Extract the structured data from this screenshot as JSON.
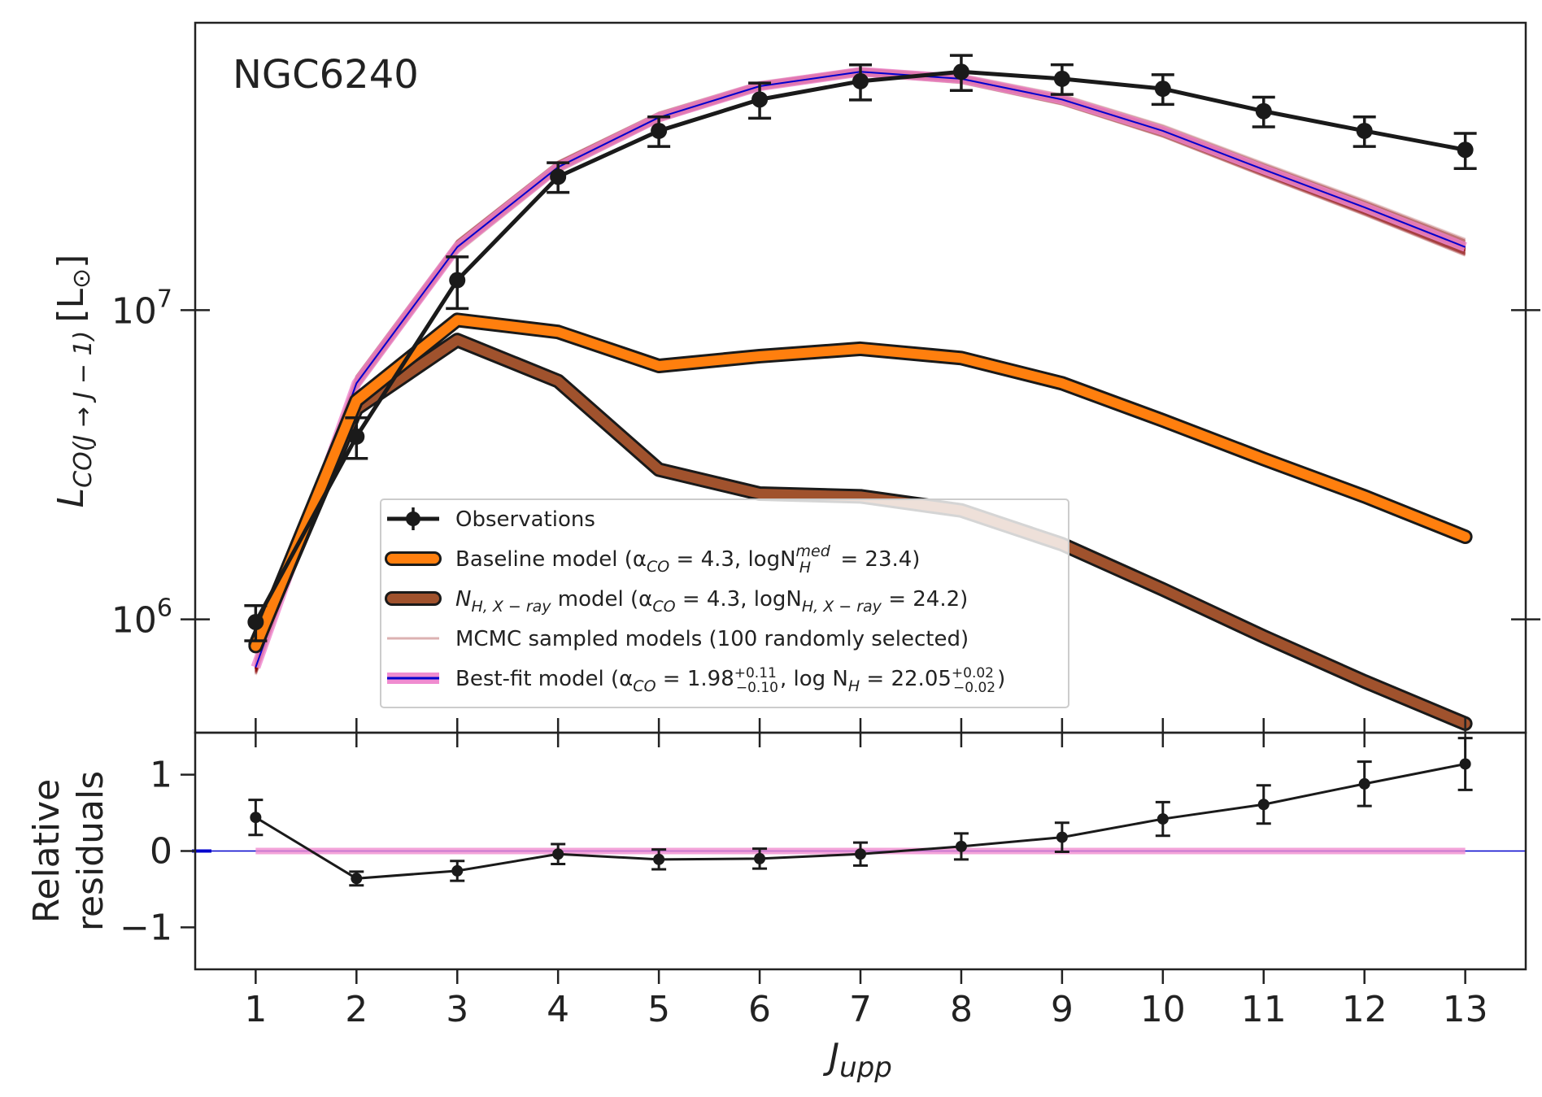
{
  "chart_data": [
    {
      "type": "line",
      "scale": "log",
      "annotation": "NGC6240",
      "ylabel_main": "L",
      "ylabel_sub": "CO(J → J − 1)",
      "ylabel_unit_open": "[L",
      "ylabel_unit_sym": "⊙",
      "ylabel_unit_close": "]",
      "ytick_base": "10",
      "ytick_labels": [
        {
          "value": 1000000,
          "exp": "6"
        },
        {
          "value": 10000000,
          "exp": "7"
        }
      ],
      "ylim": [
        430000,
        85000000
      ],
      "x": [
        1,
        2,
        3,
        4,
        5,
        6,
        7,
        8,
        9,
        10,
        11,
        12,
        13
      ],
      "series": [
        {
          "name": "observations",
          "values": [
            980000,
            3900000,
            12500000,
            27000000,
            38000000,
            48000000,
            55000000,
            59000000,
            56000000,
            52000000,
            44000000,
            38000000,
            33000000
          ],
          "err_frac": [
            0.13,
            0.15,
            0.19,
            0.11,
            0.11,
            0.13,
            0.13,
            0.13,
            0.11,
            0.11,
            0.11,
            0.11,
            0.13
          ]
        },
        {
          "name": "baseline",
          "values": [
            820000,
            5100000,
            9300000,
            8500000,
            6600000,
            7100000,
            7500000,
            7000000,
            5800000,
            4400000,
            3300000,
            2500000,
            1850000
          ]
        },
        {
          "name": "nh_xray",
          "values": [
            830000,
            4800000,
            8000000,
            5900000,
            3050000,
            2550000,
            2500000,
            2250000,
            1750000,
            1250000,
            880000,
            630000,
            460000
          ]
        },
        {
          "name": "best_fit",
          "values": [
            700000,
            5800000,
            16000000,
            29000000,
            42000000,
            53000000,
            59000000,
            56000000,
            48000000,
            38000000,
            28500000,
            21500000,
            16000000
          ]
        }
      ],
      "legend": [
        {
          "key": "observations",
          "text": "Observations"
        },
        {
          "key": "baseline",
          "pre": "Baseline model (α",
          "sub1": "CO",
          "mid": " = 4.3, logN",
          "sup2": "med",
          "sub2": "H",
          "post": " = 23.4)"
        },
        {
          "key": "nh_xray",
          "pre": "N",
          "sub1": "H, X − ray",
          "mid": " model (α",
          "sub2": "CO",
          "post": " = 4.3, logN",
          "sub3": "H, X − ray",
          "post2": " = 24.2)"
        },
        {
          "key": "mcmc",
          "text": "MCMC sampled models (100 randomly selected)"
        },
        {
          "key": "best_fit",
          "pre": "Best-fit model (α",
          "sub1": "CO",
          "mid": " = 1.98",
          "sup2": "+0.11",
          "sub2": "−0.10",
          "post": ", log N",
          "sub3": "H",
          "post2": " = 22.05",
          "sup4": "+0.02",
          "sub4": "−0.02",
          "post3": ")"
        }
      ],
      "colors": {
        "observations": "#1a1a1a",
        "baseline": "#ff7f0e",
        "nh_xray": "#a0522d",
        "mcmc": "#8b0000",
        "best_fit": "#0000cd",
        "best_fit_band": "#f08cd0"
      }
    },
    {
      "type": "line",
      "ylabel_line1": "Relative",
      "ylabel_line2": "residuals",
      "xlabel_main": "J",
      "xlabel_sub": "upp",
      "ylim": [
        -1.55,
        1.55
      ],
      "yticks": [
        -1,
        0,
        1
      ],
      "ytick_labels": [
        "−1",
        "0",
        "1"
      ],
      "xticks": [
        1,
        2,
        3,
        4,
        5,
        6,
        7,
        8,
        9,
        10,
        11,
        12,
        13
      ],
      "xtick_labels": [
        "1",
        "2",
        "3",
        "4",
        "5",
        "6",
        "7",
        "8",
        "9",
        "10",
        "11",
        "12",
        "13"
      ],
      "series": [
        {
          "name": "residuals",
          "values": [
            0.44,
            -0.36,
            -0.26,
            -0.04,
            -0.11,
            -0.1,
            -0.04,
            0.06,
            0.18,
            0.42,
            0.61,
            0.88,
            1.14
          ],
          "err": [
            0.23,
            0.09,
            0.13,
            0.13,
            0.13,
            0.13,
            0.15,
            0.17,
            0.19,
            0.22,
            0.25,
            0.29,
            0.34
          ]
        }
      ]
    }
  ]
}
